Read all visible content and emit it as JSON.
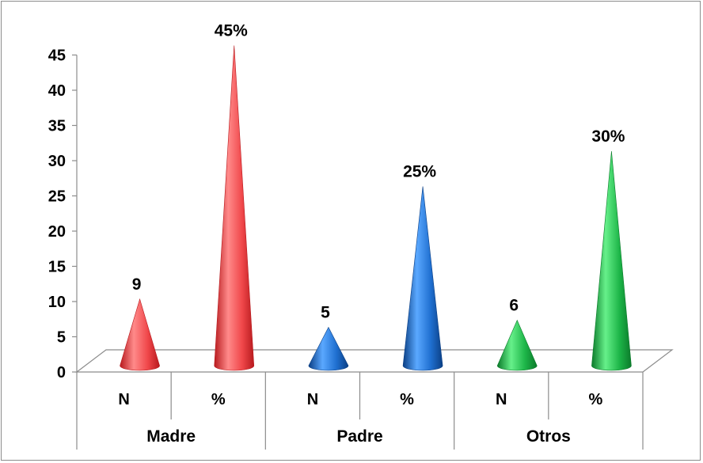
{
  "chart_data": {
    "type": "bar",
    "bar_shape": "cone-3d",
    "categories": [
      {
        "group": "Madre",
        "sub": "N",
        "value": 9,
        "label": "9",
        "color": "red"
      },
      {
        "group": "Madre",
        "sub": "%",
        "value": 45,
        "label": "45%",
        "color": "red"
      },
      {
        "group": "Padre",
        "sub": "N",
        "value": 5,
        "label": "5",
        "color": "blue"
      },
      {
        "group": "Padre",
        "sub": "%",
        "value": 25,
        "label": "25%",
        "color": "blue"
      },
      {
        "group": "Otros",
        "sub": "N",
        "value": 6,
        "label": "6",
        "color": "green"
      },
      {
        "group": "Otros",
        "sub": "%",
        "value": 30,
        "label": "30%",
        "color": "green"
      }
    ],
    "groups": [
      "Madre",
      "Padre",
      "Otros"
    ],
    "y_ticks": [
      "0",
      "5",
      "10",
      "15",
      "20",
      "25",
      "30",
      "35",
      "40",
      "45"
    ],
    "ylim": [
      0,
      45
    ],
    "title": "",
    "xlabel": "",
    "ylabel": "",
    "grid": false,
    "legend": "none"
  },
  "colors": {
    "red": {
      "light": "#ff8a8a",
      "mid": "#f0474a",
      "dark": "#b81a1e"
    },
    "blue": {
      "light": "#5aa8ff",
      "mid": "#1f6fd0",
      "dark": "#0b3f85"
    },
    "green": {
      "light": "#66f08a",
      "mid": "#1db548",
      "dark": "#0b7a2a"
    },
    "axis": "#8c8c8c",
    "floor": "#ffffff"
  }
}
